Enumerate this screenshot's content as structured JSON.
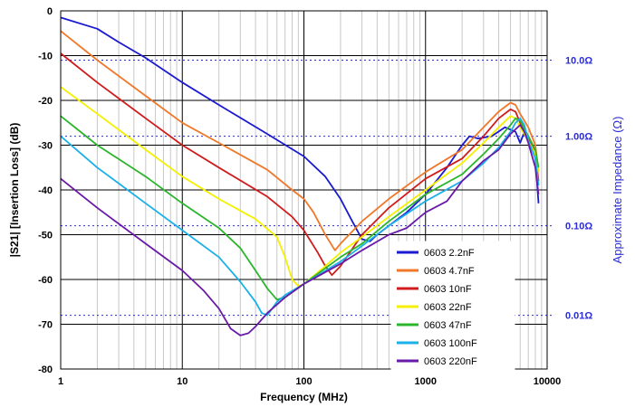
{
  "chart_data": {
    "type": "line",
    "xlabel": "Frequency (MHz)",
    "ylabel": "|S21| [Insertion Loss] (dB)",
    "y2label": "Approximate Impedance (Ω)",
    "x_scale": "log",
    "xlim": [
      1,
      10000
    ],
    "ylim": [
      -80,
      0
    ],
    "x_ticks": [
      1,
      10,
      100,
      1000,
      10000
    ],
    "x_tick_labels": [
      "1",
      "10",
      "100",
      "1000",
      "10000"
    ],
    "y_ticks": [
      0,
      -10,
      -20,
      -30,
      -40,
      -50,
      -60,
      -70,
      -80
    ],
    "y_tick_labels": [
      "0",
      "-10",
      "-20",
      "-30",
      "-40",
      "-50",
      "-60",
      "-70",
      "-80"
    ],
    "impedance_refs": [
      {
        "label": "10.0Ω",
        "y": -11
      },
      {
        "label": "1.00Ω",
        "y": -28
      },
      {
        "label": "0.10Ω",
        "y": -48
      },
      {
        "label": "0.01Ω",
        "y": -68
      }
    ],
    "grid": true,
    "legend_position": "lower-right",
    "series": [
      {
        "name": "0603 2.2nF",
        "color": "#1a1ad0",
        "points": [
          [
            1,
            -1.5
          ],
          [
            2,
            -4
          ],
          [
            3,
            -7
          ],
          [
            5,
            -10.5
          ],
          [
            10,
            -16
          ],
          [
            20,
            -21
          ],
          [
            50,
            -27.5
          ],
          [
            100,
            -32.5
          ],
          [
            150,
            -37
          ],
          [
            200,
            -42
          ],
          [
            250,
            -47
          ],
          [
            300,
            -51
          ],
          [
            350,
            -51.5
          ],
          [
            400,
            -50
          ],
          [
            500,
            -48
          ],
          [
            700,
            -45
          ],
          [
            1000,
            -41
          ],
          [
            1500,
            -35
          ],
          [
            2000,
            -30
          ],
          [
            2300,
            -28
          ],
          [
            2700,
            -28.5
          ],
          [
            3500,
            -28
          ],
          [
            4500,
            -26
          ],
          [
            5500,
            -27
          ],
          [
            6000,
            -29.5
          ],
          [
            6500,
            -27
          ],
          [
            7000,
            -28
          ],
          [
            7500,
            -30
          ],
          [
            8000,
            -33
          ],
          [
            8500,
            -43
          ]
        ]
      },
      {
        "name": "0603 4.7nF",
        "color": "#f0782a",
        "points": [
          [
            1,
            -4.5
          ],
          [
            2,
            -11
          ],
          [
            5,
            -19
          ],
          [
            10,
            -25
          ],
          [
            20,
            -29.5
          ],
          [
            50,
            -35.5
          ],
          [
            80,
            -40
          ],
          [
            100,
            -42
          ],
          [
            120,
            -45
          ],
          [
            150,
            -50
          ],
          [
            180,
            -53.5
          ],
          [
            200,
            -52
          ],
          [
            300,
            -47
          ],
          [
            500,
            -42
          ],
          [
            1000,
            -36
          ],
          [
            2000,
            -31
          ],
          [
            3000,
            -26
          ],
          [
            4000,
            -22.5
          ],
          [
            5000,
            -20.5
          ],
          [
            5500,
            -21
          ],
          [
            6000,
            -23
          ],
          [
            7000,
            -26
          ],
          [
            8000,
            -30
          ],
          [
            8500,
            -36
          ]
        ]
      },
      {
        "name": "0603 10nF",
        "color": "#d01c1c",
        "points": [
          [
            1,
            -9.5
          ],
          [
            2,
            -16
          ],
          [
            5,
            -24
          ],
          [
            10,
            -30
          ],
          [
            20,
            -35
          ],
          [
            50,
            -41.5
          ],
          [
            80,
            -46
          ],
          [
            100,
            -49
          ],
          [
            130,
            -54
          ],
          [
            150,
            -57
          ],
          [
            170,
            -59
          ],
          [
            200,
            -57
          ],
          [
            300,
            -50
          ],
          [
            500,
            -44
          ],
          [
            1000,
            -37.5
          ],
          [
            2000,
            -33
          ],
          [
            3000,
            -28
          ],
          [
            4000,
            -24
          ],
          [
            5000,
            -22
          ],
          [
            5500,
            -22.5
          ],
          [
            6000,
            -25
          ],
          [
            7000,
            -28
          ],
          [
            8000,
            -32
          ],
          [
            8500,
            -38
          ]
        ]
      },
      {
        "name": "0603 22nF",
        "color": "#f4f000",
        "points": [
          [
            1,
            -17
          ],
          [
            2,
            -23
          ],
          [
            5,
            -31
          ],
          [
            10,
            -37
          ],
          [
            20,
            -42
          ],
          [
            40,
            -46.5
          ],
          [
            60,
            -50.5
          ],
          [
            70,
            -55
          ],
          [
            80,
            -60
          ],
          [
            90,
            -61.5
          ],
          [
            100,
            -61
          ],
          [
            150,
            -57
          ],
          [
            200,
            -54
          ],
          [
            300,
            -50.5
          ],
          [
            500,
            -46
          ],
          [
            1000,
            -40
          ],
          [
            2000,
            -34
          ],
          [
            3000,
            -29.5
          ],
          [
            4000,
            -26
          ],
          [
            5000,
            -23.5
          ],
          [
            5500,
            -24
          ],
          [
            6000,
            -26
          ],
          [
            7000,
            -29
          ],
          [
            8000,
            -32
          ],
          [
            8500,
            -36
          ]
        ]
      },
      {
        "name": "0603 47nF",
        "color": "#2bb52b",
        "points": [
          [
            1,
            -23.5
          ],
          [
            2,
            -30
          ],
          [
            5,
            -37
          ],
          [
            10,
            -43
          ],
          [
            20,
            -48.5
          ],
          [
            30,
            -53
          ],
          [
            40,
            -58
          ],
          [
            50,
            -62
          ],
          [
            60,
            -64.5
          ],
          [
            70,
            -64
          ],
          [
            100,
            -61
          ],
          [
            200,
            -55
          ],
          [
            300,
            -52
          ],
          [
            500,
            -47
          ],
          [
            1000,
            -41
          ],
          [
            2000,
            -36.5
          ],
          [
            3000,
            -32
          ],
          [
            4000,
            -28.5
          ],
          [
            5000,
            -25.5
          ],
          [
            5500,
            -24
          ],
          [
            6000,
            -24.5
          ],
          [
            7000,
            -28
          ],
          [
            8000,
            -31
          ],
          [
            8500,
            -35
          ]
        ]
      },
      {
        "name": "0603 100nF",
        "color": "#1ab0e8",
        "points": [
          [
            1,
            -28
          ],
          [
            2,
            -35
          ],
          [
            5,
            -43
          ],
          [
            10,
            -49
          ],
          [
            20,
            -55
          ],
          [
            30,
            -60.5
          ],
          [
            40,
            -65
          ],
          [
            45,
            -67.5
          ],
          [
            50,
            -68
          ],
          [
            60,
            -65
          ],
          [
            70,
            -63.5
          ],
          [
            100,
            -61
          ],
          [
            200,
            -56
          ],
          [
            300,
            -52.5
          ],
          [
            500,
            -48
          ],
          [
            1000,
            -42.5
          ],
          [
            2000,
            -38
          ],
          [
            3000,
            -34
          ],
          [
            4000,
            -30.5
          ],
          [
            5000,
            -27
          ],
          [
            5500,
            -25
          ],
          [
            6000,
            -24
          ],
          [
            6500,
            -25.5
          ],
          [
            7000,
            -29
          ],
          [
            8000,
            -33
          ],
          [
            8500,
            -39
          ]
        ]
      },
      {
        "name": "0603 220nF",
        "color": "#6a1aa8",
        "points": [
          [
            1,
            -37.5
          ],
          [
            2,
            -44
          ],
          [
            5,
            -52
          ],
          [
            10,
            -58
          ],
          [
            15,
            -62.5
          ],
          [
            20,
            -66.5
          ],
          [
            25,
            -71
          ],
          [
            30,
            -72.5
          ],
          [
            35,
            -72
          ],
          [
            40,
            -70.5
          ],
          [
            50,
            -67.5
          ],
          [
            70,
            -64
          ],
          [
            100,
            -61
          ],
          [
            200,
            -56.5
          ],
          [
            300,
            -53.5
          ],
          [
            500,
            -50
          ],
          [
            700,
            -48.5
          ],
          [
            1000,
            -45
          ],
          [
            1500,
            -42.5
          ],
          [
            2000,
            -38
          ],
          [
            3000,
            -33.5
          ],
          [
            4000,
            -31
          ],
          [
            5000,
            -27.5
          ],
          [
            6000,
            -25.5
          ],
          [
            6500,
            -27
          ],
          [
            7000,
            -29.5
          ],
          [
            8000,
            -35
          ],
          [
            8500,
            -41
          ]
        ]
      }
    ]
  }
}
